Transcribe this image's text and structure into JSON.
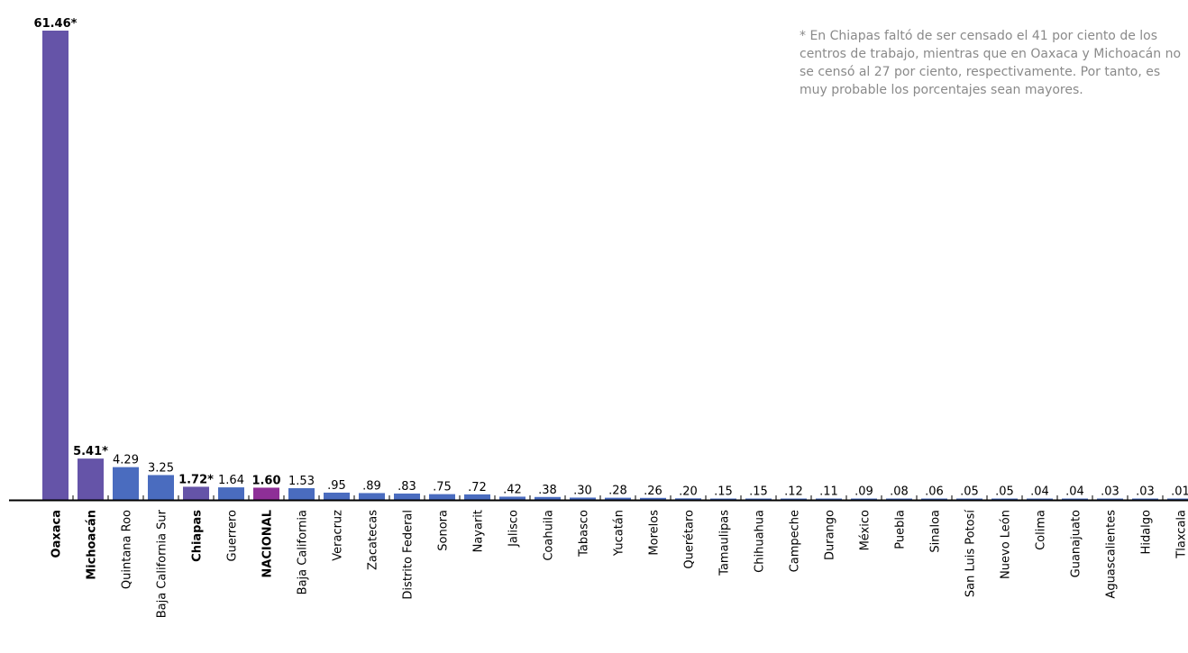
{
  "note": "* En Chiapas faltó de ser censado el 41 por ciento de los centros de trabajo, mientras que en Oaxaca y Michoacán no se censó al 27 por ciento, respectivamente. Por tanto, es muy probable los porcentajes sean mayores.",
  "colors": {
    "default": "#4a6cbf",
    "highlight": "#6554a8",
    "national": "#8e2f97",
    "axis": "#000000"
  },
  "chart_data": {
    "type": "bar",
    "title": "",
    "xlabel": "",
    "ylabel": "",
    "ylim": [
      0,
      61.46
    ],
    "grid": false,
    "legend": "none",
    "categories": [
      "Oaxaca",
      "Michoacán",
      "Quintana Roo",
      "Baja California Sur",
      "Chiapas",
      "Guerrero",
      "NACIONAL",
      "Baja California",
      "Veracruz",
      "Zacatecas",
      "Distrito Federal",
      "Sonora",
      "Nayarit",
      "Jalisco",
      "Coahuila",
      "Tabasco",
      "Yucatán",
      "Morelos",
      "Querétaro",
      "Tamaulipas",
      "Chihuahua",
      "Campeche",
      "Durango",
      "México",
      "Puebla",
      "Sinaloa",
      "San Luis Potosí",
      "Nuevo León",
      "Colima",
      "Guanajuato",
      "Aguascalientes",
      "Hidalgo",
      "Tlaxcala"
    ],
    "values": [
      61.46,
      5.41,
      4.29,
      3.25,
      1.72,
      1.64,
      1.6,
      1.53,
      0.95,
      0.89,
      0.83,
      0.75,
      0.72,
      0.42,
      0.38,
      0.3,
      0.28,
      0.26,
      0.2,
      0.15,
      0.15,
      0.12,
      0.11,
      0.09,
      0.08,
      0.06,
      0.05,
      0.05,
      0.04,
      0.04,
      0.03,
      0.03,
      0.01
    ],
    "value_labels": [
      "61.46*",
      "5.41*",
      "4.29",
      "3.25",
      "1.72*",
      "1.64",
      "1.60",
      "1.53",
      ".95",
      ".89",
      ".83",
      ".75",
      ".72",
      ".42",
      ".38",
      ".30",
      ".28",
      ".26",
      ".20",
      ".15",
      ".15",
      ".12",
      ".11",
      ".09",
      ".08",
      ".06",
      ".05",
      ".05",
      ".04",
      ".04",
      ".03",
      ".03",
      ".01"
    ],
    "bold": [
      true,
      true,
      false,
      false,
      true,
      false,
      true,
      false,
      false,
      false,
      false,
      false,
      false,
      false,
      false,
      false,
      false,
      false,
      false,
      false,
      false,
      false,
      false,
      false,
      false,
      false,
      false,
      false,
      false,
      false,
      false,
      false,
      false
    ],
    "color_keys": [
      "highlight",
      "highlight",
      "default",
      "default",
      "highlight",
      "default",
      "national",
      "default",
      "default",
      "default",
      "default",
      "default",
      "default",
      "default",
      "default",
      "default",
      "default",
      "default",
      "default",
      "default",
      "default",
      "default",
      "default",
      "default",
      "default",
      "default",
      "default",
      "default",
      "default",
      "default",
      "default",
      "default",
      "default"
    ]
  }
}
